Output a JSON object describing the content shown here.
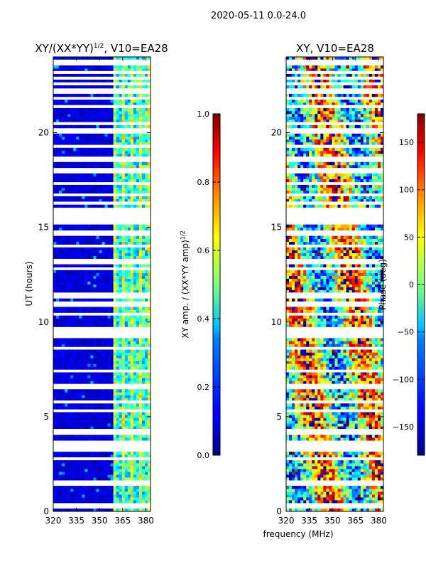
{
  "figure": {
    "suptitle": "2020-05-11 0.0-24.0",
    "shared_xlabel": "frequency (MHz)"
  },
  "chart_data": [
    {
      "type": "heatmap",
      "id": "amp",
      "title": "XY/(XX*YY)",
      "title_sup": "1/2",
      "title_suffix": ", V10=EA28",
      "xlabel": "",
      "ylabel": "UT (hours)",
      "xlim": [
        320,
        383
      ],
      "ylim": [
        0,
        24
      ],
      "xticks": [
        320,
        335,
        350,
        365,
        380
      ],
      "yticks": [
        0,
        5,
        10,
        15,
        20
      ],
      "colorbar": {
        "label": "XY amp. / (XX*YY amp)",
        "label_sup": "1/2",
        "range": [
          0.0,
          1.0
        ],
        "ticks": [
          "0.0",
          "0.2",
          "0.4",
          "0.6",
          "0.8",
          "1.0"
        ],
        "colormap": "jet"
      },
      "description_bands": {
        "low_value_region_mhz": [
          320,
          360
        ],
        "high_value_region_mhz": [
          360,
          381
        ],
        "typical_low": 0.05,
        "typical_high": 0.45
      }
    },
    {
      "type": "heatmap",
      "id": "phase",
      "title": "XY, V10=EA28",
      "xlabel": "frequency (MHz)",
      "ylabel": "",
      "xlim": [
        320,
        383
      ],
      "ylim": [
        0,
        24
      ],
      "xticks": [
        320,
        335,
        350,
        365,
        380
      ],
      "yticks": [
        0,
        5,
        10,
        15,
        20
      ],
      "colorbar": {
        "label": "Phase (deg)",
        "range": [
          -180,
          180
        ],
        "ticks": [
          "150",
          "100",
          "50",
          "0",
          "−50",
          "−100",
          "−150"
        ],
        "colormap": "jet"
      }
    }
  ],
  "flagged_rows_hours": [
    0.3,
    1.5,
    2.8,
    3.3,
    3.6,
    4.1,
    4.2,
    4.3,
    5.3,
    5.8,
    6.6,
    7.4,
    8.6,
    9.3,
    9.6,
    10.4,
    10.9,
    11.0,
    11.3,
    11.5,
    12.8,
    13.2,
    14.0,
    14.7,
    15.3,
    15.6,
    15.9,
    16.3,
    16.7,
    17.3,
    18.0,
    18.6,
    19.3,
    20.1,
    20.5,
    21.4,
    21.8,
    22.2,
    22.6,
    22.9,
    23.2,
    23.7,
    23.8
  ],
  "font_note": "",
  "colors": {
    "background": "#ffffff",
    "axis": "#000000"
  }
}
